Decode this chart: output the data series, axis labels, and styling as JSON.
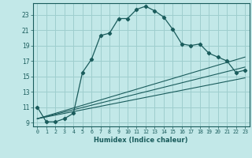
{
  "title": "",
  "xlabel": "Humidex (Indice chaleur)",
  "bg_color": "#c2e8e8",
  "grid_color": "#9ecece",
  "line_color": "#1a5c5c",
  "xlim": [
    -0.5,
    23.5
  ],
  "ylim": [
    8.5,
    24.5
  ],
  "xticks": [
    0,
    1,
    2,
    3,
    4,
    5,
    6,
    7,
    8,
    9,
    10,
    11,
    12,
    13,
    14,
    15,
    16,
    17,
    18,
    19,
    20,
    21,
    22,
    23
  ],
  "yticks": [
    9,
    11,
    13,
    15,
    17,
    19,
    21,
    23
  ],
  "main_curve_x": [
    0,
    1,
    2,
    3,
    4,
    5,
    6,
    7,
    8,
    9,
    10,
    11,
    12,
    13,
    14,
    15,
    16,
    17,
    18,
    19,
    20,
    21,
    22,
    23
  ],
  "main_curve_y": [
    11.0,
    9.1,
    9.1,
    9.5,
    10.2,
    15.5,
    17.2,
    20.3,
    20.6,
    22.5,
    22.5,
    23.7,
    24.1,
    23.5,
    22.7,
    21.1,
    19.2,
    19.0,
    19.2,
    18.0,
    17.5,
    17.0,
    15.5,
    15.8
  ],
  "line1_x": [
    0,
    23
  ],
  "line1_y": [
    9.5,
    17.5
  ],
  "line2_x": [
    0,
    23
  ],
  "line2_y": [
    9.5,
    16.2
  ],
  "line3_x": [
    0,
    23
  ],
  "line3_y": [
    9.5,
    14.8
  ]
}
